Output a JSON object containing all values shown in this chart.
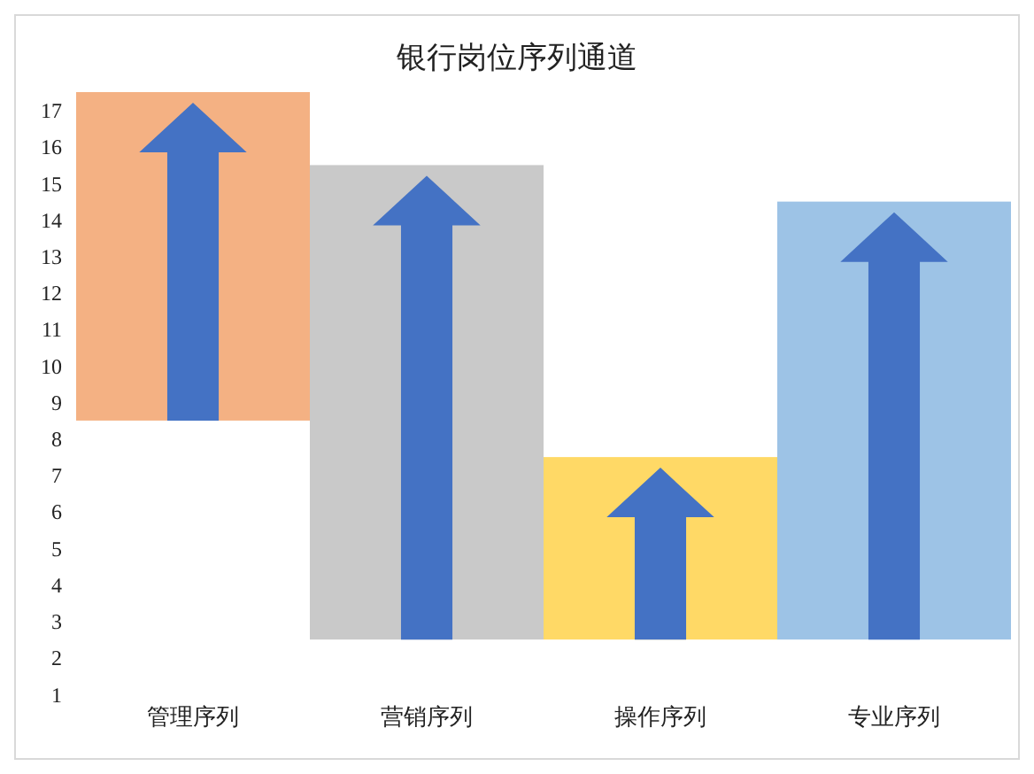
{
  "chart_data": {
    "type": "bar",
    "title": "银行岗位序列通道",
    "categories": [
      "管理序列",
      "营销序列",
      "操作序列",
      "专业序列"
    ],
    "base": [
      8.5,
      2.5,
      2.5,
      2.5
    ],
    "values": [
      9,
      13,
      5,
      12
    ],
    "colors": [
      "#f4b183",
      "#c9c9c9",
      "#ffd966",
      "#9dc3e6"
    ],
    "ylim": [
      1,
      17.5
    ],
    "yticks": [
      1,
      2,
      3,
      4,
      5,
      6,
      7,
      8,
      9,
      10,
      11,
      12,
      13,
      14,
      15,
      16,
      17
    ],
    "grid": false,
    "legend": false
  }
}
